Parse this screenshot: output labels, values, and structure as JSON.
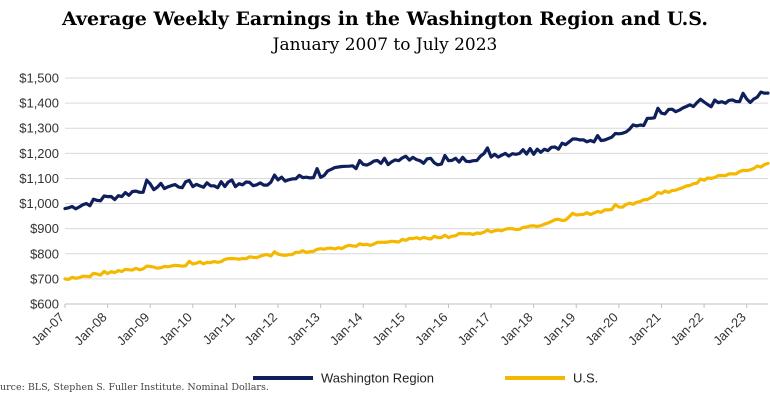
{
  "chart_data": {
    "type": "line",
    "title": "Average Weekly Earnings in the Washington Region and U.S.",
    "subtitle": "January 2007 to July 2023",
    "xlabel": "",
    "ylabel": "",
    "ylim": [
      600,
      1500
    ],
    "yticks": [
      "$600",
      "$700",
      "$800",
      "$900",
      "$1,000",
      "$1,100",
      "$1,200",
      "$1,300",
      "$1,400",
      "$1,500"
    ],
    "yticks_values": [
      600,
      700,
      800,
      900,
      1000,
      1100,
      1200,
      1300,
      1400,
      1500
    ],
    "xticks": [
      "Jan-07",
      "Jan-08",
      "Jan-09",
      "Jan-10",
      "Jan-11",
      "Jan-12",
      "Jan-13",
      "Jan-14",
      "Jan-15",
      "Jan-16",
      "Jan-17",
      "Jan-18",
      "Jan-19",
      "Jan-20",
      "Jan-21",
      "Jan-22",
      "Jan-23"
    ],
    "x_start": "Jan-07",
    "x_end": "Jul-23",
    "grid": "horizontal",
    "legend": "bottom",
    "series": [
      {
        "name": "Washington Region",
        "color": "#0f1f5c",
        "anchors": [
          [
            "Jan-07",
            980
          ],
          [
            "Jan-08",
            1020
          ],
          [
            "Jan-09",
            1065
          ],
          [
            "Jan-10",
            1075
          ],
          [
            "Jan-11",
            1075
          ],
          [
            "Jan-12",
            1090
          ],
          [
            "Jan-13",
            1115
          ],
          [
            "Jan-14",
            1160
          ],
          [
            "Jan-15",
            1175
          ],
          [
            "Jan-16",
            1165
          ],
          [
            "Jan-17",
            1195
          ],
          [
            "Jan-18",
            1210
          ],
          [
            "Jan-19",
            1245
          ],
          [
            "Jan-20",
            1275
          ],
          [
            "Jan-21",
            1355
          ],
          [
            "Jan-22",
            1395
          ],
          [
            "Jan-23",
            1410
          ],
          [
            "Jul-23",
            1440
          ]
        ]
      },
      {
        "name": "U.S.",
        "color": "#f5b800",
        "anchors": [
          [
            "Jan-07",
            700
          ],
          [
            "Jan-08",
            725
          ],
          [
            "Jan-09",
            745
          ],
          [
            "Jan-10",
            760
          ],
          [
            "Jan-11",
            780
          ],
          [
            "Jan-12",
            795
          ],
          [
            "Jan-13",
            815
          ],
          [
            "Jan-14",
            835
          ],
          [
            "Jan-15",
            855
          ],
          [
            "Jan-16",
            870
          ],
          [
            "Jan-17",
            890
          ],
          [
            "Jan-18",
            910
          ],
          [
            "Jan-19",
            950
          ],
          [
            "Jan-20",
            985
          ],
          [
            "Jan-21",
            1040
          ],
          [
            "Jan-22",
            1095
          ],
          [
            "Jan-23",
            1130
          ],
          [
            "Jul-23",
            1160
          ]
        ]
      }
    ]
  },
  "source_note": "urce: BLS, Stephen S. Fuller Institute. Nominal Dollars."
}
